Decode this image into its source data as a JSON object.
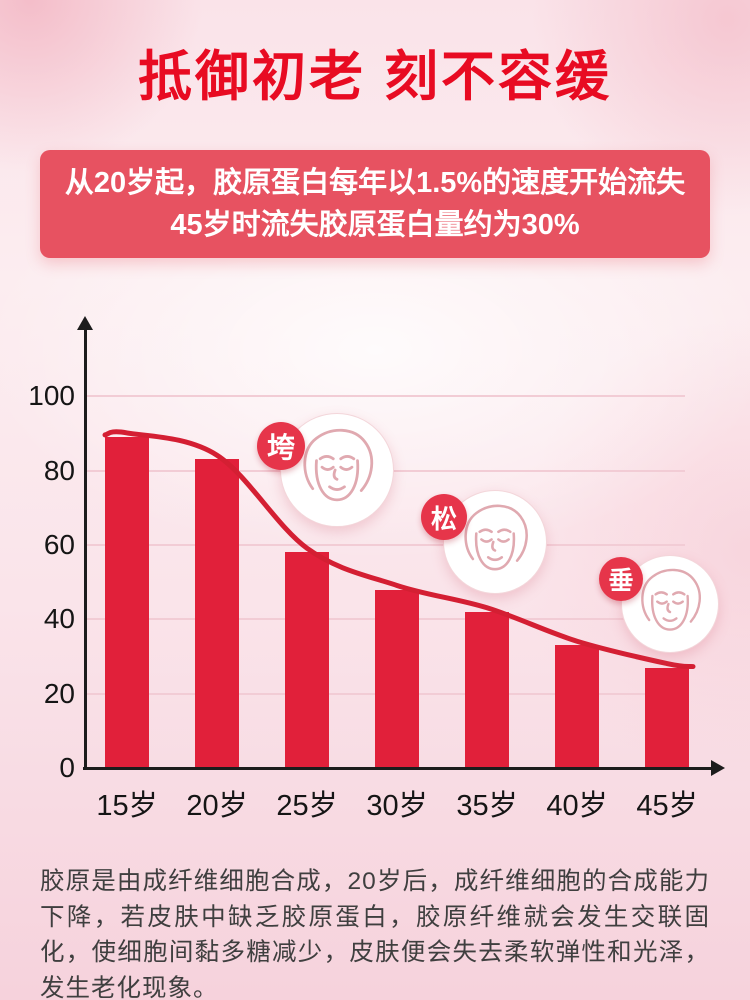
{
  "page": {
    "title": "抵御初老 刻不容缓",
    "banner": {
      "line1": "从20岁起，胶原蛋白每年以1.5%的速度开始流失",
      "line2": "45岁时流失胶原蛋白量约为30%"
    },
    "footer_text": "胶原是由成纤维细胞合成，20岁后，成纤维细胞的合成能力下降，若皮肤中缺乏胶原蛋白，胶原纤维就会发生交联固化，使细胞间黏多糖减少，皮肤便会失去柔软弹性和光泽，发生老化现象。"
  },
  "chart_data": {
    "type": "bar",
    "title": "",
    "categories": [
      "15岁",
      "20岁",
      "25岁",
      "30岁",
      "35岁",
      "40岁",
      "45岁"
    ],
    "values": [
      89,
      83,
      58,
      48,
      42,
      33,
      27
    ],
    "series": [
      {
        "name": "collagen-level-bars",
        "type": "bar",
        "values": [
          89,
          83,
          58,
          48,
          42,
          33,
          27
        ]
      },
      {
        "name": "collagen-trend-line",
        "type": "line",
        "values": [
          89,
          83,
          58,
          48,
          42,
          33,
          27
        ]
      }
    ],
    "xlabel": "",
    "ylabel": "",
    "yticks": [
      0,
      20,
      40,
      60,
      80,
      100
    ],
    "ylim": [
      0,
      115
    ],
    "grid": true,
    "legend": "none",
    "bar_color": "#e1203a",
    "line_color": "#d41f33",
    "axis_color": "#1c1c1c",
    "grid_color": "#f2ccd5",
    "annotations": [
      {
        "badge": "垮",
        "anchor_category": "25岁",
        "icon": "aging-face-cheek-icon"
      },
      {
        "badge": "松",
        "anchor_category": "35岁",
        "icon": "aging-face-loose-skin-icon"
      },
      {
        "badge": "垂",
        "anchor_category": "45岁",
        "icon": "aging-face-eyebag-icon"
      }
    ]
  }
}
